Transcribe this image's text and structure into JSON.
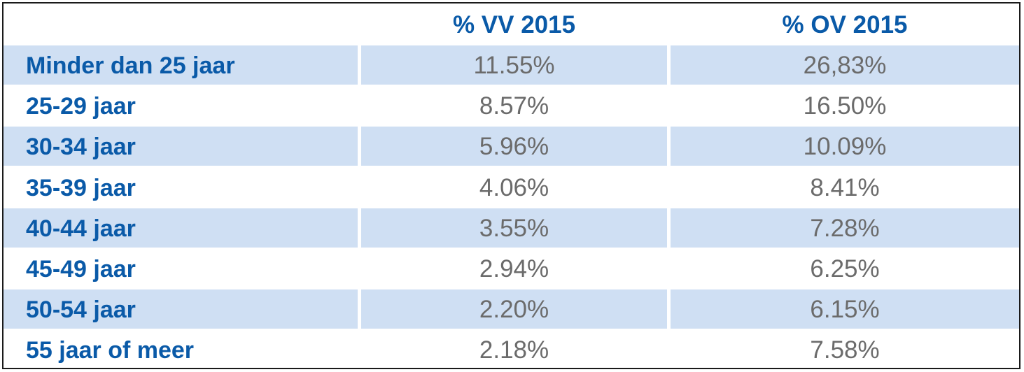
{
  "chart_data": {
    "type": "table",
    "columns": [
      "",
      "% VV 2015",
      "% OV 2015"
    ],
    "rows": [
      {
        "label": "Minder dan 25 jaar",
        "vv": "11.55%",
        "ov": "26,83%"
      },
      {
        "label": "25-29 jaar",
        "vv": "8.57%",
        "ov": "16.50%"
      },
      {
        "label": "30-34 jaar",
        "vv": "5.96%",
        "ov": "10.09%"
      },
      {
        "label": "35-39 jaar",
        "vv": "4.06%",
        "ov": "8.41%"
      },
      {
        "label": "40-44 jaar",
        "vv": "3.55%",
        "ov": "7.28%"
      },
      {
        "label": "45-49 jaar",
        "vv": "2.94%",
        "ov": "6.25%"
      },
      {
        "label": "50-54 jaar",
        "vv": "2.20%",
        "ov": "6.15%"
      },
      {
        "label": "55 jaar of meer",
        "vv": "2.18%",
        "ov": "7.58%"
      }
    ]
  },
  "colors": {
    "header_text": "#0a5aa8",
    "label_text": "#0a5aa8",
    "value_text": "#6b6b6b",
    "row_shade": "#cfdff3",
    "border": "#1a1a1a"
  }
}
